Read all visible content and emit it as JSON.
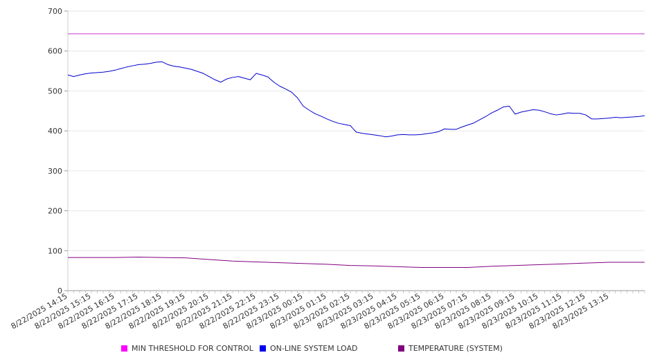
{
  "chart_data": {
    "type": "line",
    "title": "",
    "xlabel": "",
    "ylabel": "",
    "ylim": [
      0,
      700
    ],
    "yticks": [
      0,
      100,
      200,
      300,
      400,
      500,
      600,
      700
    ],
    "grid": true,
    "legend_position": "bottom",
    "x_start": "8/22/2025 14:15",
    "x_end": "8/23/2025 14:45",
    "xtick_labels": [
      "8/22/2025 14:15",
      "8/22/2025 15:15",
      "8/22/2025 16:15",
      "8/22/2025 17:15",
      "8/22/2025 18:15",
      "8/22/2025 19:15",
      "8/22/2025 20:15",
      "8/22/2025 21:15",
      "8/22/2025 22:15",
      "8/22/2025 23:15",
      "8/23/2025 00:15",
      "8/23/2025 01:15",
      "8/23/2025 02:15",
      "8/23/2025 03:15",
      "8/23/2025 04:15",
      "8/23/2025 05:15",
      "8/23/2025 06:15",
      "8/23/2025 07:15",
      "8/23/2025 08:15",
      "8/23/2025 09:15",
      "8/23/2025 10:15",
      "8/23/2025 11:15",
      "8/23/2025 12:15",
      "8/23/2025 13:15"
    ],
    "series": [
      {
        "name": "MIN THRESHOLD FOR CONTROL",
        "color": "#cc33cc",
        "points": [
          [
            "8/22/2025 14:15",
            643
          ],
          [
            "8/23/2025 14:45",
            643
          ]
        ]
      },
      {
        "name": "ON-LINE SYSTEM LOAD",
        "color": "#0000cc",
        "points": [
          [
            "8/22/2025 14:15",
            540
          ],
          [
            "8/22/2025 14:30",
            536
          ],
          [
            "8/22/2025 14:45",
            540
          ],
          [
            "8/22/2025 15:00",
            543
          ],
          [
            "8/22/2025 15:15",
            545
          ],
          [
            "8/22/2025 15:30",
            546
          ],
          [
            "8/22/2025 15:45",
            547
          ],
          [
            "8/22/2025 16:00",
            549
          ],
          [
            "8/22/2025 16:15",
            552
          ],
          [
            "8/22/2025 16:30",
            556
          ],
          [
            "8/22/2025 16:45",
            560
          ],
          [
            "8/22/2025 17:00",
            563
          ],
          [
            "8/22/2025 17:15",
            566
          ],
          [
            "8/22/2025 17:30",
            567
          ],
          [
            "8/22/2025 17:45",
            569
          ],
          [
            "8/22/2025 18:00",
            572
          ],
          [
            "8/22/2025 18:15",
            573
          ],
          [
            "8/22/2025 18:30",
            566
          ],
          [
            "8/22/2025 18:45",
            562
          ],
          [
            "8/22/2025 19:00",
            560
          ],
          [
            "8/22/2025 19:15",
            557
          ],
          [
            "8/22/2025 19:30",
            554
          ],
          [
            "8/22/2025 19:45",
            549
          ],
          [
            "8/22/2025 20:00",
            544
          ],
          [
            "8/22/2025 20:15",
            536
          ],
          [
            "8/22/2025 20:30",
            528
          ],
          [
            "8/22/2025 20:45",
            522
          ],
          [
            "8/22/2025 21:00",
            530
          ],
          [
            "8/22/2025 21:15",
            534
          ],
          [
            "8/22/2025 21:30",
            536
          ],
          [
            "8/22/2025 21:45",
            532
          ],
          [
            "8/22/2025 22:00",
            528
          ],
          [
            "8/22/2025 22:15",
            544
          ],
          [
            "8/22/2025 22:30",
            540
          ],
          [
            "8/22/2025 22:45",
            535
          ],
          [
            "8/22/2025 23:00",
            522
          ],
          [
            "8/22/2025 23:15",
            512
          ],
          [
            "8/22/2025 23:30",
            505
          ],
          [
            "8/22/2025 23:45",
            497
          ],
          [
            "8/23/2025 00:00",
            483
          ],
          [
            "8/23/2025 00:15",
            462
          ],
          [
            "8/23/2025 00:30",
            452
          ],
          [
            "8/23/2025 00:45",
            443
          ],
          [
            "8/23/2025 01:00",
            437
          ],
          [
            "8/23/2025 01:15",
            430
          ],
          [
            "8/23/2025 01:30",
            424
          ],
          [
            "8/23/2025 01:45",
            419
          ],
          [
            "8/23/2025 02:00",
            416
          ],
          [
            "8/23/2025 02:15",
            413
          ],
          [
            "8/23/2025 02:30",
            397
          ],
          [
            "8/23/2025 02:45",
            394
          ],
          [
            "8/23/2025 03:00",
            392
          ],
          [
            "8/23/2025 03:15",
            390
          ],
          [
            "8/23/2025 03:30",
            388
          ],
          [
            "8/23/2025 03:45",
            385
          ],
          [
            "8/23/2025 04:00",
            387
          ],
          [
            "8/23/2025 04:15",
            390
          ],
          [
            "8/23/2025 04:30",
            391
          ],
          [
            "8/23/2025 04:45",
            390
          ],
          [
            "8/23/2025 05:00",
            390
          ],
          [
            "8/23/2025 05:15",
            391
          ],
          [
            "8/23/2025 05:30",
            393
          ],
          [
            "8/23/2025 05:45",
            395
          ],
          [
            "8/23/2025 06:00",
            398
          ],
          [
            "8/23/2025 06:15",
            405
          ],
          [
            "8/23/2025 06:30",
            404
          ],
          [
            "8/23/2025 06:45",
            404
          ],
          [
            "8/23/2025 07:00",
            410
          ],
          [
            "8/23/2025 07:15",
            415
          ],
          [
            "8/23/2025 07:30",
            420
          ],
          [
            "8/23/2025 07:45",
            428
          ],
          [
            "8/23/2025 08:00",
            436
          ],
          [
            "8/23/2025 08:15",
            445
          ],
          [
            "8/23/2025 08:30",
            452
          ],
          [
            "8/23/2025 08:45",
            460
          ],
          [
            "8/23/2025 09:00",
            462
          ],
          [
            "8/23/2025 09:15",
            442
          ],
          [
            "8/23/2025 09:30",
            447
          ],
          [
            "8/23/2025 09:45",
            450
          ],
          [
            "8/23/2025 10:00",
            453
          ],
          [
            "8/23/2025 10:15",
            452
          ],
          [
            "8/23/2025 10:30",
            448
          ],
          [
            "8/23/2025 10:45",
            443
          ],
          [
            "8/23/2025 11:00",
            440
          ],
          [
            "8/23/2025 11:15",
            442
          ],
          [
            "8/23/2025 11:30",
            445
          ],
          [
            "8/23/2025 11:45",
            444
          ],
          [
            "8/23/2025 12:00",
            444
          ],
          [
            "8/23/2025 12:15",
            440
          ],
          [
            "8/23/2025 12:30",
            430
          ],
          [
            "8/23/2025 12:45",
            430
          ],
          [
            "8/23/2025 13:00",
            431
          ],
          [
            "8/23/2025 13:15",
            432
          ],
          [
            "8/23/2025 13:30",
            434
          ],
          [
            "8/23/2025 13:45",
            433
          ],
          [
            "8/23/2025 14:00",
            434
          ],
          [
            "8/23/2025 14:15",
            435
          ],
          [
            "8/23/2025 14:30",
            436
          ],
          [
            "8/23/2025 14:45",
            438
          ]
        ]
      },
      {
        "name": "TEMPERATURE (SYSTEM)",
        "color": "#800080",
        "points": [
          [
            "8/22/2025 14:15",
            83
          ],
          [
            "8/22/2025 15:15",
            83
          ],
          [
            "8/22/2025 16:15",
            83
          ],
          [
            "8/22/2025 17:15",
            84
          ],
          [
            "8/22/2025 18:15",
            83
          ],
          [
            "8/22/2025 19:15",
            82
          ],
          [
            "8/22/2025 20:15",
            78
          ],
          [
            "8/22/2025 21:15",
            74
          ],
          [
            "8/22/2025 22:15",
            72
          ],
          [
            "8/22/2025 23:15",
            70
          ],
          [
            "8/23/2025 00:15",
            68
          ],
          [
            "8/23/2025 01:15",
            66
          ],
          [
            "8/23/2025 02:15",
            63
          ],
          [
            "8/23/2025 03:15",
            62
          ],
          [
            "8/23/2025 04:15",
            60
          ],
          [
            "8/23/2025 05:15",
            58
          ],
          [
            "8/23/2025 06:15",
            58
          ],
          [
            "8/23/2025 07:15",
            58
          ],
          [
            "8/23/2025 08:15",
            61
          ],
          [
            "8/23/2025 09:15",
            63
          ],
          [
            "8/23/2025 10:15",
            65
          ],
          [
            "8/23/2025 11:15",
            67
          ],
          [
            "8/23/2025 12:15",
            69
          ],
          [
            "8/23/2025 13:15",
            71
          ],
          [
            "8/23/2025 14:45",
            71
          ]
        ]
      }
    ]
  }
}
